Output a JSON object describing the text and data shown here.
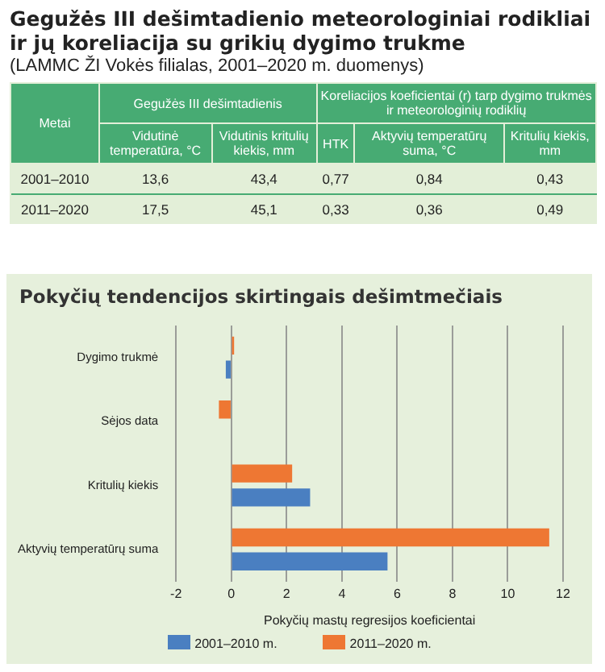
{
  "chart_data": [
    {
      "type": "other",
      "title": "Gegužės III dešimtadienio meteorologiniai rodikliai ir jų koreliacija su grikių dygimo trukme",
      "subtitle": "(LAMMC ŽI Vokės filialas, 2001–2020 m. duomenys)",
      "annotations": [
        "Metai",
        "Gegužės III dešimtadienis",
        "Koreliacijos koeficientai (r) tarp dygimo trukmės ir meteorologinių rodiklių",
        "Vidutinė temperatūra, °C",
        "Vidutinis kritulių kiekis, mm",
        "HTK",
        "Aktyvių temperatūrų suma, °C",
        "Kritulių kiekis, mm",
        "2001–2010",
        "13,6",
        "43,4",
        "0,77",
        "0,84",
        "0,43",
        "2011–2020",
        "17,5",
        "45,1",
        "0,33",
        "0,36",
        "0,49"
      ]
    },
    {
      "type": "bar",
      "orientation": "horizontal",
      "title": "Pokyčių tendencijos skirtingais dešimtmečiais",
      "xlabel": "Pokyčių mastų regresijos koeficientai",
      "categories": [
        "Dygimo trukmė",
        "Sėjos data",
        "Kritulių kiekis",
        "Aktyvių temperatūrų suma"
      ],
      "series": [
        {
          "name": "2001–2010 m.",
          "color": "#4a7fc1",
          "values": [
            -0.2,
            null,
            2.85,
            5.65
          ]
        },
        {
          "name": "2011–2020 m.",
          "color": "#ee7733",
          "values": [
            0.1,
            -0.45,
            2.2,
            11.5
          ]
        }
      ],
      "xlim": [
        -2,
        12
      ],
      "xticks": [
        -2,
        0,
        2,
        4,
        6,
        8,
        10,
        12
      ],
      "grid": "x",
      "legend": "bottom"
    }
  ]
}
